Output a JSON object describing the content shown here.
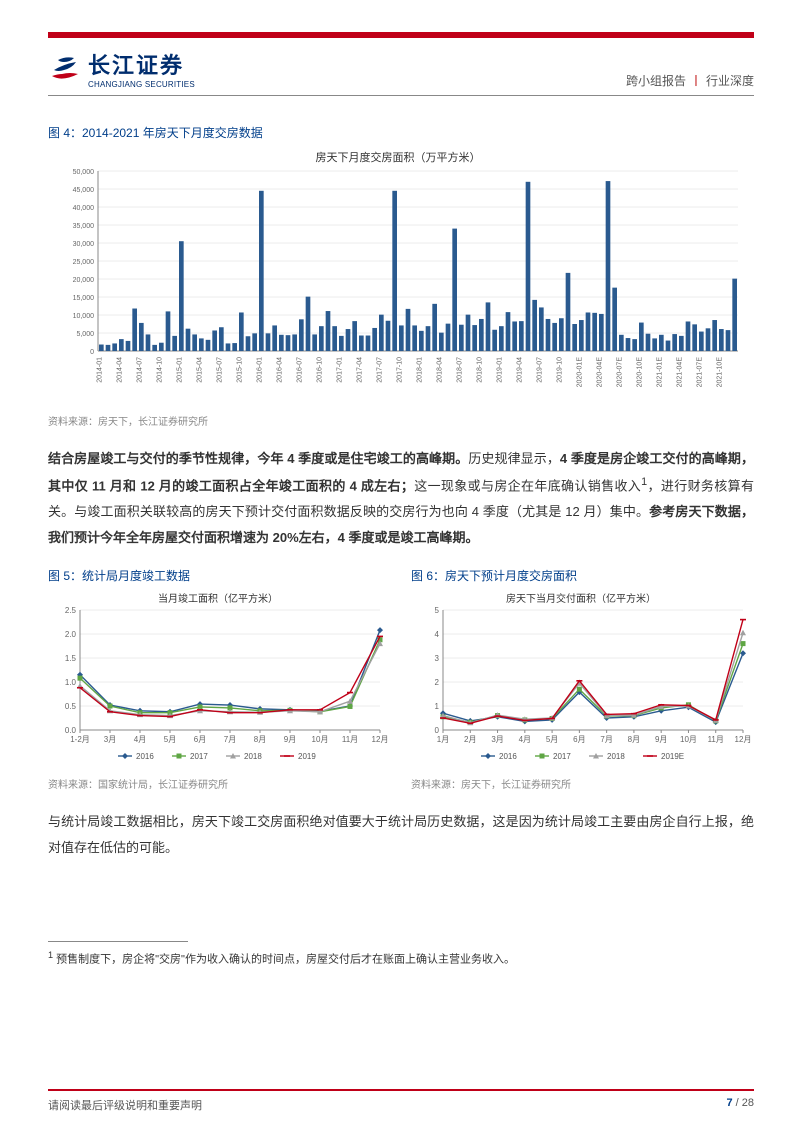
{
  "header": {
    "logo_cn": "长江证券",
    "logo_en": "CHANGJIANG SECURITIES",
    "right_a": "跨小组报告",
    "right_b": "行业深度"
  },
  "fig4": {
    "title": "图 4：2014-2021 年房天下月度交房数据",
    "chart_title": "房天下月度交房面积（万平方米）",
    "source": "资料来源：房天下，长江证券研究所",
    "y_max": 50000,
    "y_step": 5000,
    "bar_color": "#2a5a8f",
    "grid_color": "#d8d8d8",
    "axis_color": "#888",
    "text_color": "#666",
    "title_fontsize": 11,
    "axis_fontsize": 7,
    "x_labels": [
      "2014-01",
      "2014-04",
      "2014-07",
      "2014-10",
      "2015-01",
      "2015-04",
      "2015-07",
      "2015-10",
      "2016-01",
      "2016-04",
      "2016-07",
      "2016-10",
      "2017-01",
      "2017-04",
      "2017-07",
      "2017-10",
      "2018-01",
      "2018-04",
      "2018-07",
      "2018-10",
      "2019-01",
      "2019-04",
      "2019-07",
      "2019-10",
      "2020-01E",
      "2020-04E",
      "2020-07E",
      "2020-10E",
      "2021-01E",
      "2021-04E",
      "2021-07E",
      "2021-10E"
    ],
    "values": [
      1800,
      1700,
      2100,
      3300,
      2800,
      11800,
      7800,
      4600,
      1700,
      2300,
      11000,
      4200,
      30500,
      6200,
      4600,
      3500,
      3100,
      5700,
      6600,
      2100,
      2200,
      10700,
      4100,
      4900,
      44500,
      4900,
      7100,
      4500,
      4400,
      4600,
      8800,
      15100,
      4600,
      6900,
      11100,
      6900,
      4200,
      6100,
      8300,
      4300,
      4300,
      6400,
      10100,
      8400,
      44500,
      7100,
      11700,
      7100,
      5600,
      6900,
      13100,
      5100,
      7600,
      34000,
      7300,
      10100,
      7200,
      8900,
      13500,
      5900,
      6900,
      10800,
      8200,
      8300,
      47000,
      14200,
      12100,
      8900,
      7800,
      9100,
      21700,
      7500,
      8600,
      10700,
      10600,
      10300,
      47200,
      17600,
      4500,
      3600,
      3300,
      7900,
      4800,
      3500,
      4500,
      2900,
      4700,
      4200,
      8200,
      7400,
      5400,
      6300,
      8600,
      6100,
      5800,
      20100
    ]
  },
  "para1": {
    "l1b": "结合房屋竣工与交付的季节性规律，今年 4 季度或是住宅竣工的高峰期。",
    "l1": "历史规律显示，",
    "l2b": "4 季度是房企竣工交付的高峰期，其中仅 11 月和 12 月的竣工面积占全年竣工面积的 4 成左右；",
    "l2": "这一现象或与房企在年底确认销售收入",
    "sup": "1",
    "l3": "，进行财务核算有关。与竣工面积关联较高的房天下预计交付面积数据反映的交房行为也向 4 季度（尤其是 12 月）集中。",
    "l4b": "参考房天下数据，我们预计今年全年房屋交付面积增速为 20%左右，4 季度或是竣工高峰期。"
  },
  "fig5": {
    "title": "图 5：统计局月度竣工数据",
    "chart_title": "当月竣工面积（亿平方米）",
    "source": "资料来源：国家统计局，长江证券研究所",
    "y_max": 2.5,
    "y_step": 0.5,
    "x_labels": [
      "1-2月",
      "3月",
      "4月",
      "5月",
      "6月",
      "7月",
      "8月",
      "9月",
      "10月",
      "11月",
      "12月"
    ],
    "series": [
      {
        "name": "2016",
        "color": "#2a5a8f",
        "marker": "diamond",
        "values": [
          1.15,
          0.52,
          0.4,
          0.38,
          0.54,
          0.52,
          0.44,
          0.42,
          0.39,
          0.5,
          2.08
        ]
      },
      {
        "name": "2017",
        "color": "#5fa644",
        "marker": "square",
        "values": [
          1.08,
          0.5,
          0.36,
          0.36,
          0.48,
          0.46,
          0.4,
          0.41,
          0.38,
          0.49,
          1.88
        ]
      },
      {
        "name": "2018",
        "color": "#a0a0a0",
        "marker": "triangle",
        "values": [
          0.92,
          0.4,
          0.32,
          0.3,
          0.4,
          0.38,
          0.37,
          0.4,
          0.38,
          0.6,
          1.8
        ]
      },
      {
        "name": "2019",
        "color": "#c00018",
        "marker": "line",
        "values": [
          0.88,
          0.38,
          0.3,
          0.28,
          0.42,
          0.36,
          0.36,
          0.42,
          0.42,
          0.78,
          1.95
        ]
      }
    ]
  },
  "fig6": {
    "title": "图 6：房天下预计月度交房面积",
    "chart_title": "房天下当月交付面积（亿平方米）",
    "source": "资料来源：房天下，长江证券研究所",
    "y_max": 5,
    "y_step": 1,
    "x_labels": [
      "1月",
      "2月",
      "3月",
      "4月",
      "5月",
      "6月",
      "7月",
      "8月",
      "9月",
      "10月",
      "11月",
      "12月"
    ],
    "series": [
      {
        "name": "2016",
        "color": "#2a5a8f",
        "marker": "diamond",
        "values": [
          0.7,
          0.38,
          0.55,
          0.36,
          0.42,
          1.58,
          0.5,
          0.55,
          0.8,
          0.95,
          0.33,
          3.2
        ]
      },
      {
        "name": "2017",
        "color": "#5fa644",
        "marker": "square",
        "values": [
          0.55,
          0.32,
          0.6,
          0.42,
          0.48,
          1.7,
          0.58,
          0.6,
          0.92,
          1.05,
          0.38,
          3.6
        ]
      },
      {
        "name": "2018",
        "color": "#a0a0a0",
        "marker": "triangle",
        "values": [
          0.6,
          0.3,
          0.62,
          0.45,
          0.5,
          1.95,
          0.6,
          0.62,
          0.98,
          1.0,
          0.4,
          4.05
        ]
      },
      {
        "name": "2019E",
        "color": "#c00018",
        "marker": "line",
        "values": [
          0.5,
          0.28,
          0.58,
          0.4,
          0.48,
          2.05,
          0.65,
          0.68,
          1.05,
          1.02,
          0.42,
          4.6
        ]
      }
    ]
  },
  "para2": "与统计局竣工数据相比，房天下竣工交房面积绝对值要大于统计局历史数据，这是因为统计局竣工主要由房企自行上报，绝对值存在低估的可能。",
  "footnote": {
    "num": "1",
    "text": " 预售制度下，房企将\"交房\"作为收入确认的时间点，房屋交付后才在账面上确认主营业务收入。"
  },
  "footer": {
    "left": "请阅读最后评级说明和重要声明",
    "page_cur": "7",
    "page_sep": " / ",
    "page_total": "28"
  }
}
